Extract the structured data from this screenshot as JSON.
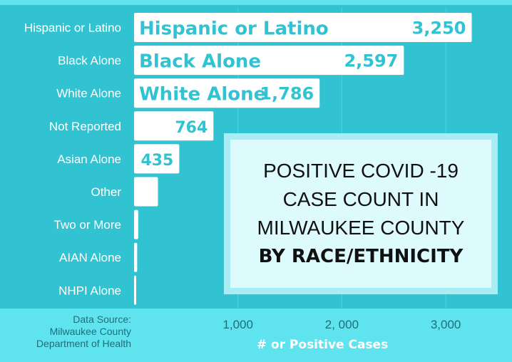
{
  "chart_data": {
    "type": "bar",
    "orientation": "horizontal",
    "categories": [
      "Hispanic or Latino",
      "Black Alone",
      "White Alone",
      "Not Reported",
      "Asian Alone",
      "Other",
      "Two or More",
      "AIAN Alone",
      "NHPI Alone"
    ],
    "values": [
      3250,
      2597,
      1786,
      764,
      435,
      230,
      40,
      30,
      15
    ],
    "data_labels": [
      {
        "name": "Hispanic or Latino",
        "value": "3,250"
      },
      {
        "name": "Black Alone",
        "value": "2,597"
      },
      {
        "name": "White Alone",
        "value": "1,786"
      },
      {
        "name": "",
        "value": "764"
      },
      {
        "name": "",
        "value": "435"
      },
      {
        "name": "",
        "value": ""
      },
      {
        "name": "",
        "value": ""
      },
      {
        "name": "",
        "value": ""
      },
      {
        "name": "",
        "value": ""
      }
    ],
    "x_ticks": [
      1000,
      2000,
      3000
    ],
    "x_tick_labels": [
      "1,000",
      "2, 000",
      "3,000"
    ],
    "xlim": [
      0,
      3500
    ],
    "xlabel": "# or Positive Cases",
    "title_line1": "POSITIVE COVID -19 CASE COUNT IN MILWAUKEE COUNTY",
    "title_line2": "BY RACE/ETHNICITY",
    "source": [
      "Data Source:",
      "Milwaukee County",
      "Department of Health"
    ],
    "grid": true,
    "colors": {
      "background": "#31c3d2",
      "footer": "#5fe3ef",
      "bar": "#ffffff",
      "label": "#31c3d2",
      "title_box": "#ddfafd",
      "title_border": "#a9edf4"
    }
  }
}
